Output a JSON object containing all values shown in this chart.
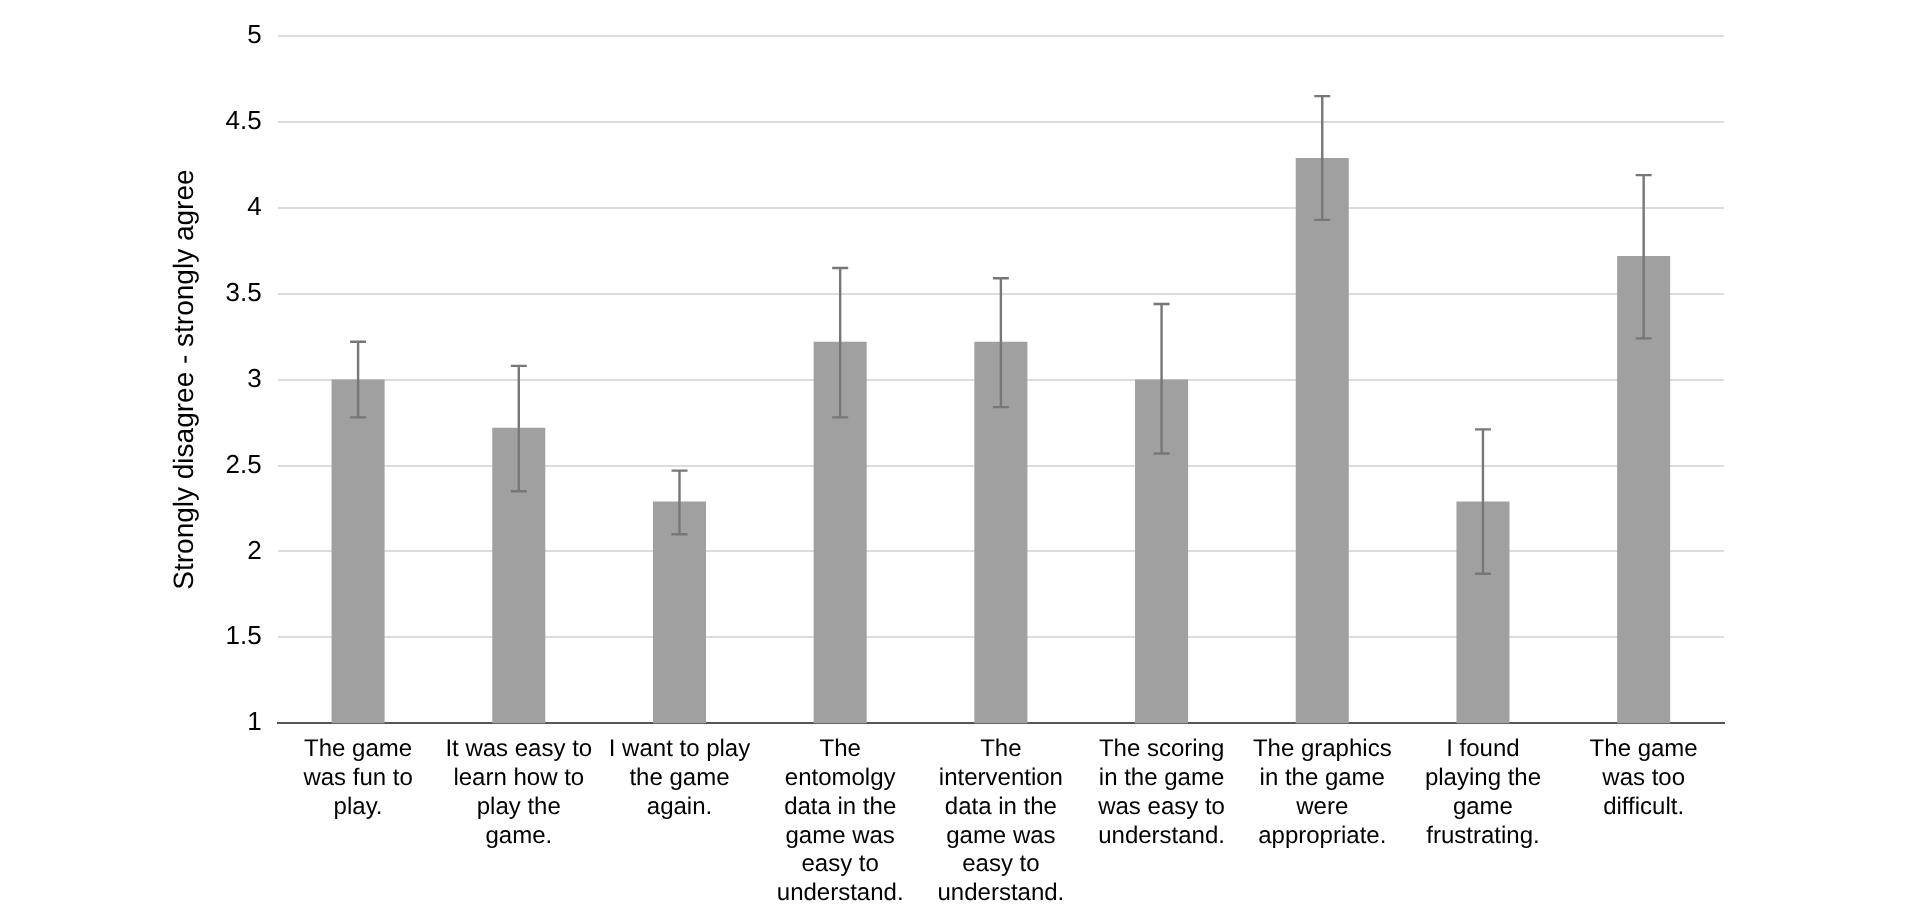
{
  "chart_data": {
    "type": "bar",
    "ylabel": "Strongly disagree - strongly agree",
    "categories": [
      "The game was fun to play.",
      "It was easy to learn how to play the game.",
      "I want to play the game again.",
      "The entomolgy data in the game was easy to understand.",
      "The intervention data in the game was easy to understand.",
      "The scoring in the game was easy to understand.",
      "The graphics in the game were appropriate.",
      "I found playing the game frustrating.",
      "The game was too difficult."
    ],
    "values": [
      3.0,
      2.72,
      2.29,
      3.22,
      3.22,
      3.0,
      4.29,
      2.29,
      3.72
    ],
    "errors": [
      [
        2.78,
        3.22
      ],
      [
        2.35,
        3.08
      ],
      [
        2.1,
        2.47
      ],
      [
        2.78,
        3.65
      ],
      [
        2.84,
        3.59
      ],
      [
        2.57,
        3.44
      ],
      [
        3.93,
        4.65
      ],
      [
        1.87,
        2.71
      ],
      [
        3.24,
        4.19
      ]
    ],
    "color": "#a0a0a0",
    "ylim": [
      1,
      5
    ],
    "yticks": [
      1,
      1.5,
      2,
      2.5,
      3,
      3.5,
      4,
      4.5,
      5
    ],
    "grid": "y",
    "legend": false
  }
}
